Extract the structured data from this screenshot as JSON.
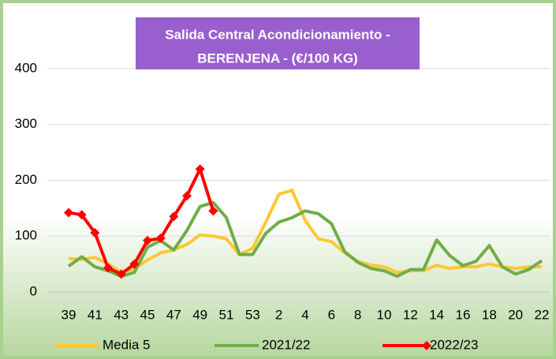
{
  "chart_data": {
    "type": "line",
    "title": [
      "Salida Central Acondicionamiento -",
      "BERENJENA - (€/100 KG)"
    ],
    "categories": [
      "39",
      null,
      "41",
      null,
      "43",
      null,
      "45",
      null,
      "47",
      null,
      "49",
      null,
      "51",
      null,
      "53",
      null,
      "2",
      null,
      "4",
      null,
      "6",
      null,
      "8",
      null,
      "10",
      null,
      "12",
      null,
      "14",
      null,
      "16",
      null,
      "18",
      null,
      "20",
      null,
      "22"
    ],
    "series": [
      {
        "name": "Media 5",
        "color": "#ffc832",
        "values": [
          60,
          58,
          62,
          50,
          35,
          42,
          57,
          70,
          75,
          85,
          102,
          100,
          95,
          67,
          78,
          125,
          175,
          182,
          128,
          95,
          90,
          70,
          55,
          48,
          45,
          35,
          38,
          38,
          48,
          42,
          45,
          45,
          50,
          45,
          42,
          45,
          45
        ]
      },
      {
        "name": "2021/22",
        "color": "#70ad47",
        "values": [
          46,
          63,
          45,
          38,
          28,
          35,
          80,
          92,
          75,
          110,
          153,
          160,
          133,
          67,
          67,
          105,
          125,
          133,
          145,
          140,
          122,
          72,
          53,
          42,
          38,
          28,
          40,
          40,
          93,
          65,
          47,
          55,
          83,
          45,
          32,
          40,
          56
        ]
      },
      {
        "name": "2022/23",
        "color": "#ff0000",
        "marker": "diamond",
        "values": [
          142,
          138,
          106,
          43,
          32,
          50,
          92,
          96,
          135,
          172,
          220,
          145,
          null,
          null,
          null,
          null,
          null,
          null,
          null,
          null,
          null,
          null,
          null,
          null,
          null,
          null,
          null,
          null,
          null,
          null,
          null,
          null,
          null,
          null,
          null,
          null,
          null
        ]
      }
    ],
    "ylim": [
      0,
      500
    ],
    "yticks": [
      0,
      100,
      200,
      300,
      400
    ],
    "grid": true
  }
}
